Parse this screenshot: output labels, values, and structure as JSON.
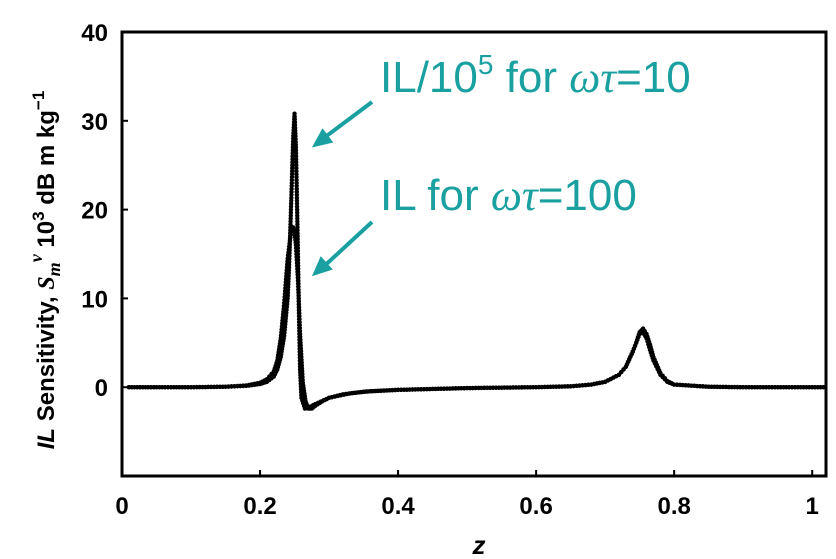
{
  "chart_data": {
    "type": "scatter",
    "xlabel": "z",
    "ylabel": {
      "prefix": "IL",
      "main": " Sensitivity, ",
      "symbol": "S",
      "subscript": "m",
      "superscript": "v",
      "units_base": " 10",
      "units_exp": "3",
      "units_rest": " dB m kg",
      "units_exp2": "−1"
    },
    "xlim": [
      0,
      1.02
    ],
    "ylim": [
      -10,
      40
    ],
    "x_ticks": [
      "0",
      "0.2",
      "0.4",
      "0.6",
      "0.8",
      "1"
    ],
    "x_tick_values": [
      0,
      0.2,
      0.4,
      0.6,
      0.8,
      1.0
    ],
    "y_ticks": [
      "0",
      "10",
      "20",
      "30",
      "40"
    ],
    "y_tick_values": [
      0,
      10,
      20,
      30,
      40
    ],
    "series": [
      {
        "name": "IL/10^5 for ωτ=10",
        "x": [
          0.01,
          0.05,
          0.1,
          0.15,
          0.18,
          0.2,
          0.21,
          0.22,
          0.225,
          0.23,
          0.235,
          0.24,
          0.242,
          0.244,
          0.246,
          0.248,
          0.25,
          0.252,
          0.254,
          0.256,
          0.258,
          0.26,
          0.265,
          0.27,
          0.28,
          0.3,
          0.33,
          0.36,
          0.4,
          0.45,
          0.5,
          0.55,
          0.6,
          0.65,
          0.68,
          0.7,
          0.72,
          0.73,
          0.74,
          0.745,
          0.75,
          0.755,
          0.76,
          0.765,
          0.77,
          0.78,
          0.79,
          0.8,
          0.85,
          0.9,
          0.95,
          1.0,
          1.02
        ],
        "y": [
          0.0,
          0.0,
          0.0,
          0.05,
          0.15,
          0.35,
          0.6,
          1.2,
          2.0,
          3.4,
          5.8,
          10.0,
          13.5,
          18.0,
          23.0,
          28.0,
          30.8,
          27.0,
          19.0,
          10.0,
          2.0,
          -1.2,
          -2.4,
          -2.3,
          -1.9,
          -1.2,
          -0.7,
          -0.45,
          -0.3,
          -0.2,
          -0.1,
          -0.05,
          0.0,
          0.1,
          0.3,
          0.6,
          1.4,
          2.3,
          4.0,
          5.0,
          6.0,
          6.2,
          5.5,
          4.2,
          3.0,
          1.4,
          0.6,
          0.3,
          0.05,
          0.0,
          0.0,
          0.0,
          0.0
        ]
      },
      {
        "name": "IL for ωτ=100",
        "x": [
          0.01,
          0.05,
          0.1,
          0.15,
          0.18,
          0.2,
          0.21,
          0.22,
          0.225,
          0.23,
          0.235,
          0.24,
          0.245,
          0.248,
          0.25,
          0.252,
          0.255,
          0.258,
          0.262,
          0.266,
          0.27,
          0.275,
          0.28,
          0.29,
          0.3,
          0.32,
          0.35,
          0.4,
          0.45,
          0.5,
          0.55,
          0.6,
          0.65,
          0.68,
          0.7,
          0.72,
          0.73,
          0.74,
          0.745,
          0.75,
          0.755,
          0.76,
          0.765,
          0.77,
          0.78,
          0.79,
          0.8,
          0.85,
          0.9,
          0.95,
          1.0,
          1.02
        ],
        "y": [
          0.0,
          0.0,
          0.0,
          0.05,
          0.2,
          0.5,
          0.9,
          1.8,
          3.0,
          5.5,
          9.5,
          14.5,
          17.5,
          18.0,
          17.5,
          16.0,
          12.0,
          6.0,
          0.5,
          -1.6,
          -2.4,
          -2.4,
          -2.1,
          -1.6,
          -1.2,
          -0.8,
          -0.5,
          -0.3,
          -0.2,
          -0.1,
          -0.05,
          0.0,
          0.1,
          0.3,
          0.6,
          1.4,
          2.3,
          4.0,
          5.0,
          6.2,
          6.6,
          6.0,
          4.8,
          3.4,
          1.6,
          0.7,
          0.3,
          0.05,
          0.0,
          0.0,
          0.0,
          0.0
        ]
      }
    ],
    "annotations": [
      {
        "text_main": "IL/10",
        "text_sup": "5",
        "text_mid": " for ",
        "text_greek": "ωτ",
        "text_end": "=10",
        "arrow_to": [
          0.252,
          27
        ]
      },
      {
        "text_main": "IL",
        "text_sup": "",
        "text_mid": " for ",
        "text_greek": "ωτ",
        "text_end": "=100",
        "arrow_to": [
          0.252,
          12.5
        ]
      }
    ],
    "colors": {
      "points": "#000000",
      "annotation": "#1aa0a0",
      "axes": "#000000"
    },
    "grid": false,
    "legend": "none"
  }
}
